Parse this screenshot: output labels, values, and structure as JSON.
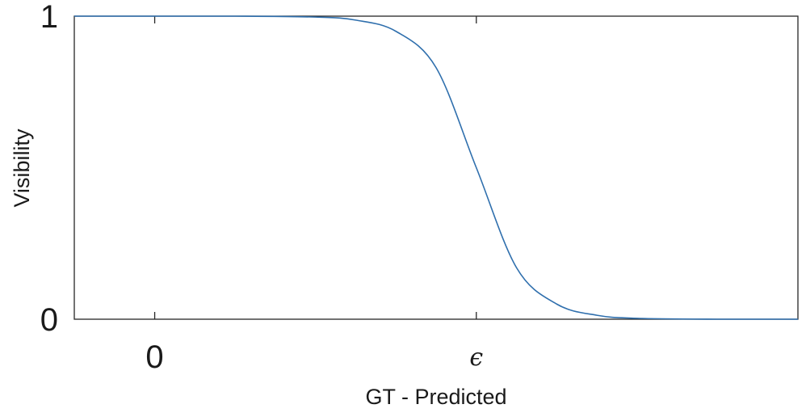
{
  "chart_data": {
    "type": "line",
    "xlabel": "GT - Predicted",
    "ylabel": "Visibility",
    "x_ticks": [
      {
        "value": 0,
        "label": "0"
      },
      {
        "value": 1,
        "label": "ϵ"
      }
    ],
    "y_ticks": [
      {
        "value": 0,
        "label": "0"
      },
      {
        "value": 1,
        "label": "1"
      }
    ],
    "xlim": [
      -0.25,
      2.0
    ],
    "ylim": [
      0,
      1
    ],
    "grid": false,
    "series": [
      {
        "color": "#2f6fad",
        "x": [
          -0.25,
          0.0,
          0.25,
          0.5,
          0.625,
          0.75,
          0.875,
          1.0,
          1.125,
          1.25,
          1.375,
          1.5,
          1.75,
          2.0
        ],
        "y": [
          1.0,
          1.0,
          1.0,
          0.997,
          0.987,
          0.95,
          0.83,
          0.5,
          0.17,
          0.05,
          0.013,
          0.003,
          0.0,
          0.0
        ]
      }
    ]
  }
}
